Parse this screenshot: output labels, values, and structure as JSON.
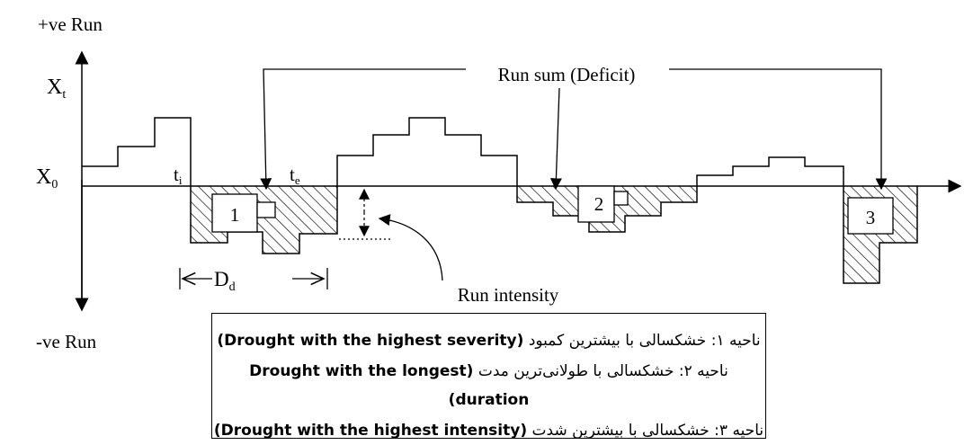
{
  "labels": {
    "positive_run": "+ve Run",
    "negative_run": "-ve Run",
    "x_t": {
      "base": "X",
      "sub": "t"
    },
    "x_0": {
      "base": "X",
      "sub": "0"
    },
    "t_i": {
      "base": "t",
      "sub": "i"
    },
    "t_e": {
      "base": "t",
      "sub": "e"
    },
    "d_d": {
      "base": "D",
      "sub": "d"
    },
    "run_sum": "Run sum (Deficit)",
    "run_intensity": "Run intensity"
  },
  "regions": [
    "1",
    "2",
    "3"
  ],
  "legend": [
    {
      "persian": "ناحیه ۱: خشکسالی با بیشترین کمبود",
      "english": "(Drought with the highest severity)"
    },
    {
      "persian": "ناحیه ۲: خشکسالی با طولانی‌ترین مدت",
      "english": "(Drought with the longest duration)"
    },
    {
      "persian": "ناحیه ۳: خشکسالی با بیشترین شدت",
      "english": "(Drought with the highest intensity)"
    }
  ]
}
